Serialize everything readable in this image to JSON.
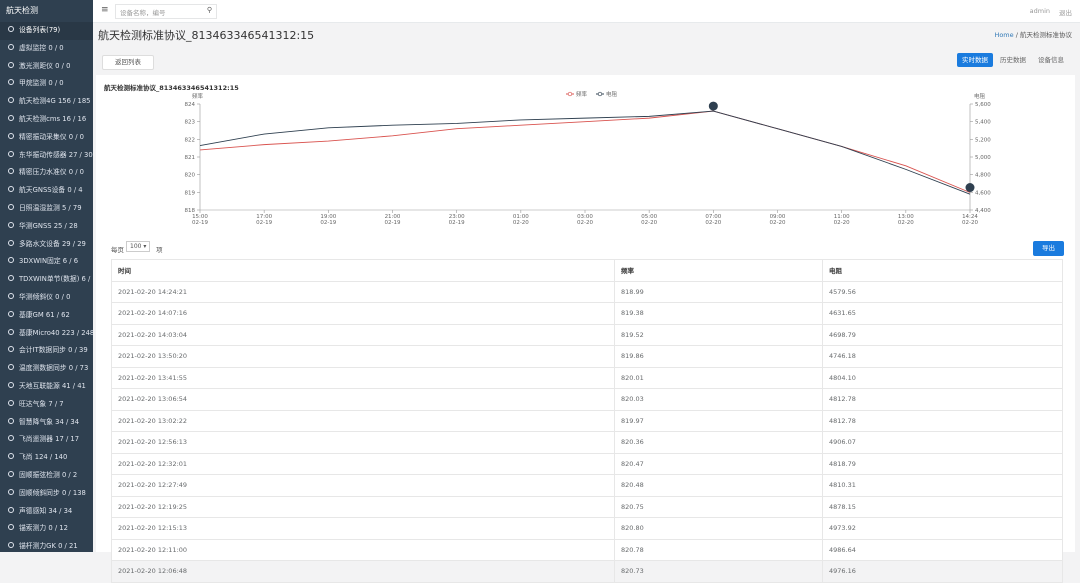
{
  "sidebar": {
    "brand": "航天检测",
    "items": [
      "设备列表(79)",
      "虚拟监控 0 / 0",
      "激光测距仪 0 / 0",
      "甲烷监测 0 / 0",
      "航天检测4G 156 / 185",
      "航天检测cms 16 / 16",
      "精密振动采集仪 0 / 0",
      "东华振动传感器 27 / 30",
      "精密压力水准仪 0 / 0",
      "航天GNSS设备 0 / 4",
      "日照温湿监测 5 / 79",
      "华测GNSS 25 / 28",
      "多路水文设备 29 / 29",
      "3DXWIN固定 6 / 6",
      "TDXWIN单节(数据) 6 / 7",
      "华测倾斜仪 0 / 0",
      "基康GM 61 / 62",
      "基康Micro40 223 / 248",
      "会计IT数据同步 0 / 39",
      "温度测数据同步 0 / 73",
      "天地互联能源 41 / 41",
      "旺达气象 7 / 7",
      "智慧降气象 34 / 34",
      "飞尚遥测器 17 / 17",
      "飞尚 124 / 140",
      "固顺振弦检测 0 / 2",
      "固顺倾斜同步 0 / 138",
      "声德感知 34 / 34",
      "锚索测力 0 / 12",
      "锚杆测力GK 0 / 21"
    ]
  },
  "topbar": {
    "menu": "≡",
    "search_placeholder": "设备名称，编号",
    "search_icon": "⚲",
    "user": "admin",
    "logout": "退出"
  },
  "header": {
    "title": "航天检测标准协议_813463346541312:15",
    "breadcrumb_home": "Home",
    "breadcrumb_sep": "/",
    "breadcrumb_current": "航天检测标准协议"
  },
  "toolbar": {
    "back": "返回列表",
    "tabs": [
      "实时数据",
      "历史数据",
      "设备信息"
    ]
  },
  "chart_data": {
    "type": "line",
    "title": "航天检测标准协议_813463346541312:15",
    "y_label": "频率",
    "y2_label": "电阻",
    "categories": [
      "02-19 15:00",
      "02-19 17:00",
      "02-19 19:00",
      "02-19 21:00",
      "02-19 23:00",
      "02-20 01:00",
      "02-20 03:00",
      "02-20 05:00",
      "02-20 07:00",
      "02-20 09:00",
      "02-20 11:00",
      "02-20 13:00",
      "02-20 14:24"
    ],
    "series": [
      {
        "name": "频率",
        "color": "#d9534f",
        "values": [
          821.4,
          821.7,
          821.9,
          822.2,
          822.6,
          822.8,
          823.0,
          823.2,
          823.6,
          822.6,
          821.6,
          820.5,
          818.99
        ]
      },
      {
        "name": "电阻",
        "color": "#2f4050",
        "axis": "y2",
        "values": [
          5130,
          5260,
          5330,
          5360,
          5380,
          5420,
          5440,
          5460,
          5520,
          5320,
          5120,
          4860,
          4579
        ]
      }
    ],
    "ylim": [
      818,
      824
    ],
    "yticks": [
      818,
      819,
      820,
      821,
      822,
      823,
      824
    ],
    "y2lim": [
      4400,
      5600
    ],
    "y2ticks": [
      {
        "value": 4400,
        "label": "4,400"
      },
      {
        "value": 4600,
        "label": "4,600"
      },
      {
        "value": 4800,
        "label": "4,800"
      },
      {
        "value": 5000,
        "label": "5,000"
      },
      {
        "value": 5200,
        "label": "5,200"
      },
      {
        "value": 5400,
        "label": "5,400"
      },
      {
        "value": 5600,
        "label": "5,600"
      }
    ]
  },
  "table": {
    "page_size_prefix": "每页",
    "page_size": "100 ▾",
    "page_size_suffix": "项",
    "export": "导出",
    "headers": [
      "时间",
      "频率",
      "电阻"
    ],
    "rows": [
      [
        "2021-02-20 14:24:21",
        "818.99",
        "4579.56"
      ],
      [
        "2021-02-20 14:07:16",
        "819.38",
        "4631.65"
      ],
      [
        "2021-02-20 14:03:04",
        "819.52",
        "4698.79"
      ],
      [
        "2021-02-20 13:50:20",
        "819.86",
        "4746.18"
      ],
      [
        "2021-02-20 13:41:55",
        "820.01",
        "4804.10"
      ],
      [
        "2021-02-20 13:06:54",
        "820.03",
        "4812.78"
      ],
      [
        "2021-02-20 13:02:22",
        "819.97",
        "4812.78"
      ],
      [
        "2021-02-20 12:56:13",
        "820.36",
        "4906.07"
      ],
      [
        "2021-02-20 12:32:01",
        "820.47",
        "4818.79"
      ],
      [
        "2021-02-20 12:27:49",
        "820.48",
        "4810.31"
      ],
      [
        "2021-02-20 12:19:25",
        "820.75",
        "4878.15"
      ],
      [
        "2021-02-20 12:15:13",
        "820.80",
        "4973.92"
      ],
      [
        "2021-02-20 12:11:00",
        "820.78",
        "4986.64"
      ],
      [
        "2021-02-20 12:06:48",
        "820.73",
        "4976.16"
      ]
    ]
  }
}
